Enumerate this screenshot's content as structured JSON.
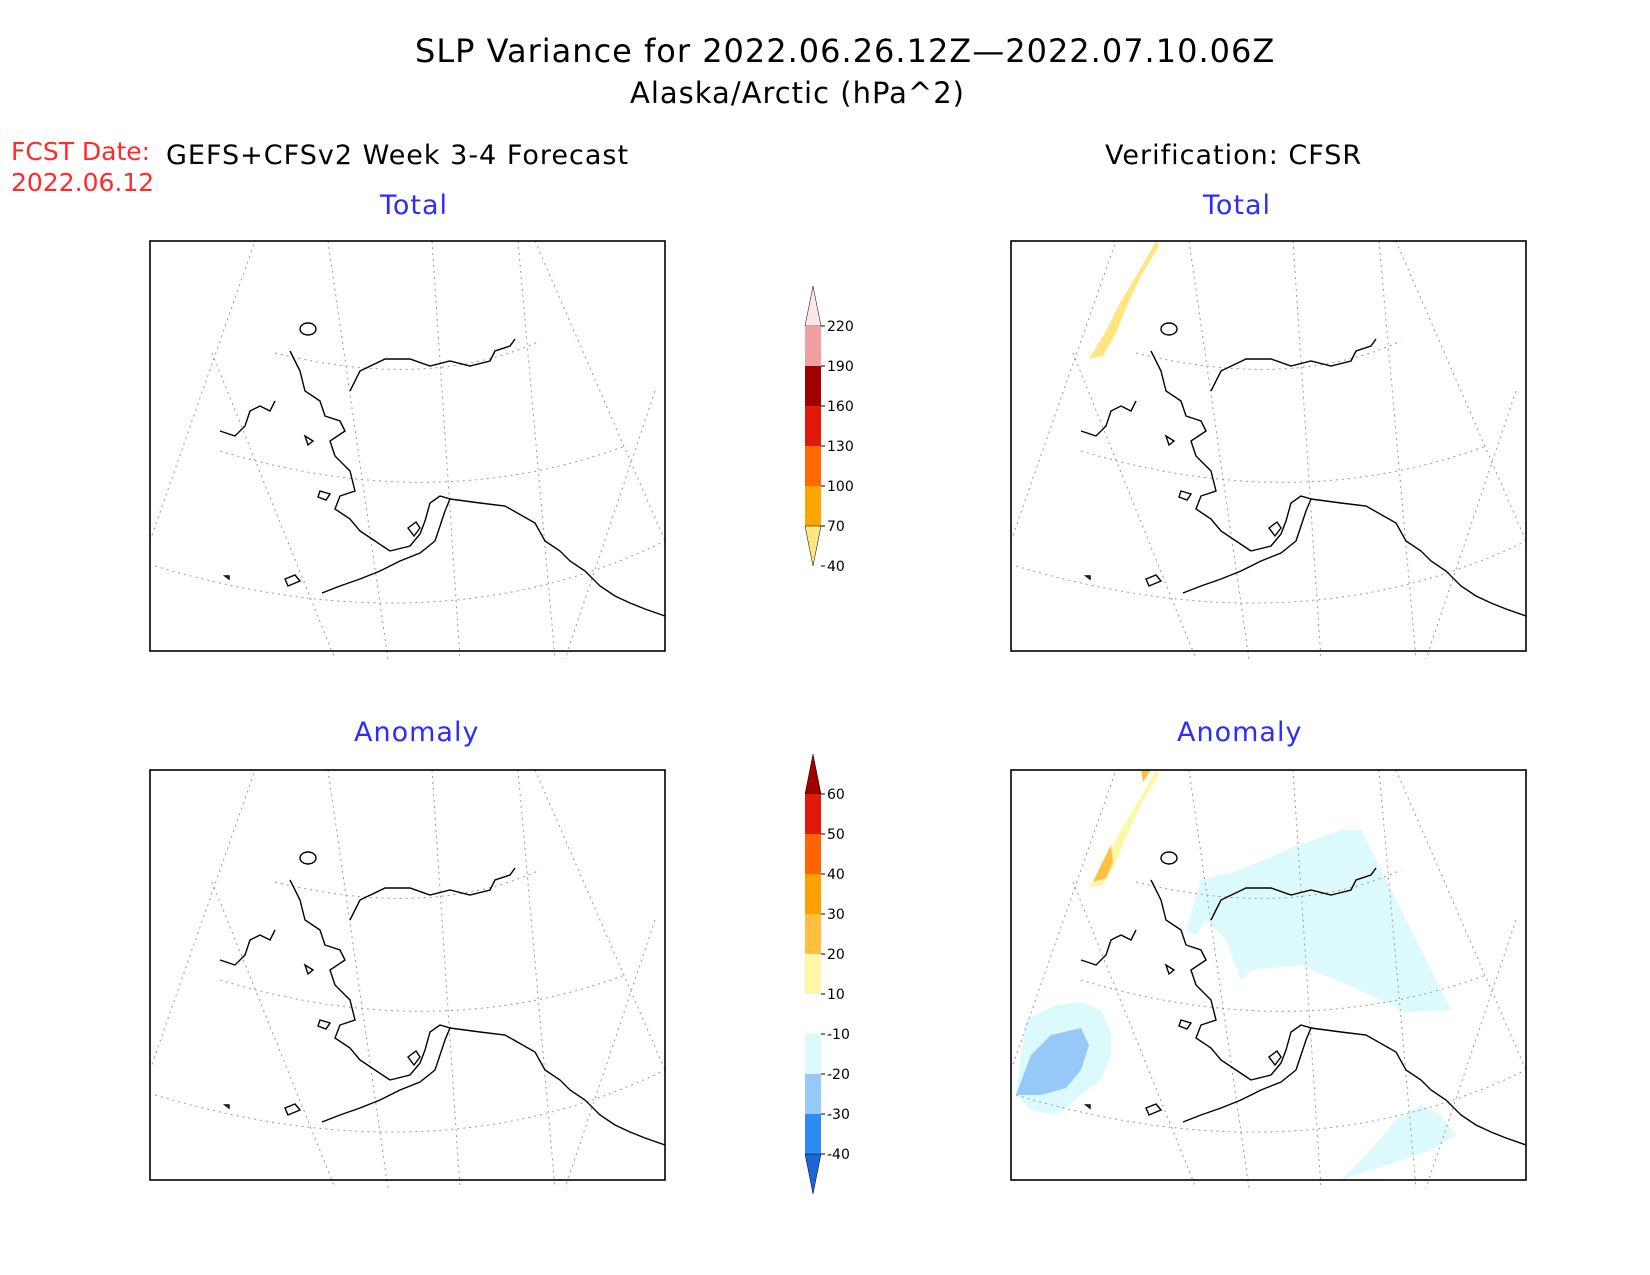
{
  "title": "SLP Variance for 2022.06.26.12Z—2022.07.10.06Z",
  "subtitle": "Alaska/Arctic (hPa^2)",
  "fcst_label": "FCST Date:",
  "fcst_date": "2022.06.12",
  "left_heading": "GEFS+CFSv2 Week 3-4 Forecast",
  "right_heading": "Verification: CFSR",
  "panels": {
    "fc_total": {
      "title": "Total"
    },
    "ver_total": {
      "title": "Total"
    },
    "fc_anom": {
      "title": "Anomaly"
    },
    "ver_anom": {
      "title": "Anomaly"
    }
  },
  "colorbars": {
    "total": {
      "labels": [
        "40",
        "70",
        "100",
        "130",
        "160",
        "190",
        "220"
      ],
      "colors": [
        "#ffe680",
        "#ffa500",
        "#ff6a00",
        "#e01a0a",
        "#a00000",
        "#f0a0a0",
        "#fde6e6"
      ]
    },
    "anomaly": {
      "labels": [
        "-40",
        "-30",
        "-20",
        "-10",
        "10",
        "20",
        "30",
        "40",
        "50",
        "60"
      ],
      "colors": [
        "#1c64d8",
        "#2a8cf0",
        "#96c8f8",
        "#dcfafc",
        "#ffffff",
        "#fff7a8",
        "#ffc040",
        "#ffa000",
        "#ff6400",
        "#e01a0a",
        "#a00000"
      ]
    }
  },
  "chart_data": {
    "type": "map",
    "region": "Alaska/Arctic",
    "units": "hPa^2",
    "fields": [
      {
        "panel": "fc_total",
        "shaded": []
      },
      {
        "panel": "ver_total",
        "shaded": [
          {
            "range": "40-70",
            "color": "#ffe680",
            "location": "Arctic coast northwest"
          }
        ]
      },
      {
        "panel": "fc_anom",
        "shaded": []
      },
      {
        "panel": "ver_anom",
        "shaded": [
          {
            "range": "10-20",
            "color": "#fff7a8",
            "location": "Arctic coast northwest"
          },
          {
            "range": "20-30",
            "color": "#ffc040",
            "location": "Arctic coast northwest"
          },
          {
            "range": "-20 to -10",
            "color": "#dcfafc",
            "location": "northern and eastern Alaska"
          },
          {
            "range": "-20 to -10",
            "color": "#dcfafc",
            "location": "Bering Sea"
          },
          {
            "range": "-30 to -20",
            "color": "#96c8f8",
            "location": "Bering Sea"
          },
          {
            "range": "-20 to -10",
            "color": "#dcfafc",
            "location": "Gulf of Alaska"
          }
        ]
      }
    ]
  }
}
